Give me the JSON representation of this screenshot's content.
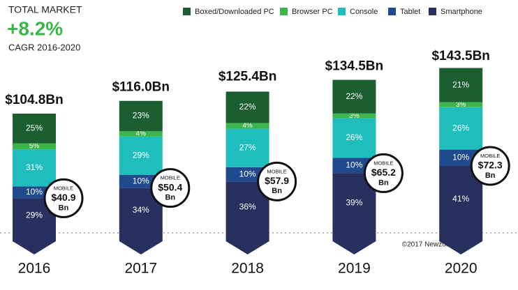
{
  "chart_data": {
    "type": "stacked_bar",
    "title": "TOTAL MARKET",
    "headline": "+8.2%",
    "subtitle": "CAGR 2016-2020",
    "credit": "©2017 Newzoo",
    "categories": [
      "2016",
      "2017",
      "2018",
      "2019",
      "2020"
    ],
    "series": [
      {
        "name": "Boxed/Downloaded PC",
        "color": "#1b5e30",
        "values": [
          25,
          23,
          22,
          22,
          21
        ],
        "value_labels": [
          "25%",
          "23%",
          "22%",
          "22%",
          "21%"
        ]
      },
      {
        "name": "Browser PC",
        "color": "#3cb54a",
        "values": [
          5,
          4,
          4,
          3,
          3
        ],
        "value_labels": [
          "5%",
          "4%",
          "4%",
          "3%",
          "3%"
        ]
      },
      {
        "name": "Console",
        "color": "#20bdbd",
        "values": [
          31,
          29,
          27,
          26,
          26
        ],
        "value_labels": [
          "31%",
          "29%",
          "27%",
          "26%",
          "26%"
        ]
      },
      {
        "name": "Tablet",
        "color": "#1f4a8e",
        "values": [
          10,
          10,
          10,
          10,
          10
        ],
        "value_labels": [
          "10%",
          "10%",
          "10%",
          "10%",
          "10%"
        ]
      },
      {
        "name": "Smartphone",
        "color": "#27305f",
        "values": [
          29,
          34,
          36,
          39,
          41
        ],
        "value_labels": [
          "29%",
          "34%",
          "36%",
          "39%",
          "41%"
        ]
      }
    ],
    "totals": {
      "values": [
        104.8,
        116.0,
        125.4,
        134.5,
        143.5
      ],
      "value_labels": [
        "$104.8Bn",
        "$116.0Bn",
        "$125.4Bn",
        "$134.5Bn",
        "$143.5Bn"
      ]
    },
    "mobile": {
      "label": "MOBILE",
      "values": [
        40.9,
        50.4,
        57.9,
        65.2,
        72.3
      ],
      "value_labels": [
        "$40.9",
        "$50.4",
        "$57.9",
        "$65.2",
        "$72.3"
      ],
      "unit": "Bn"
    }
  }
}
